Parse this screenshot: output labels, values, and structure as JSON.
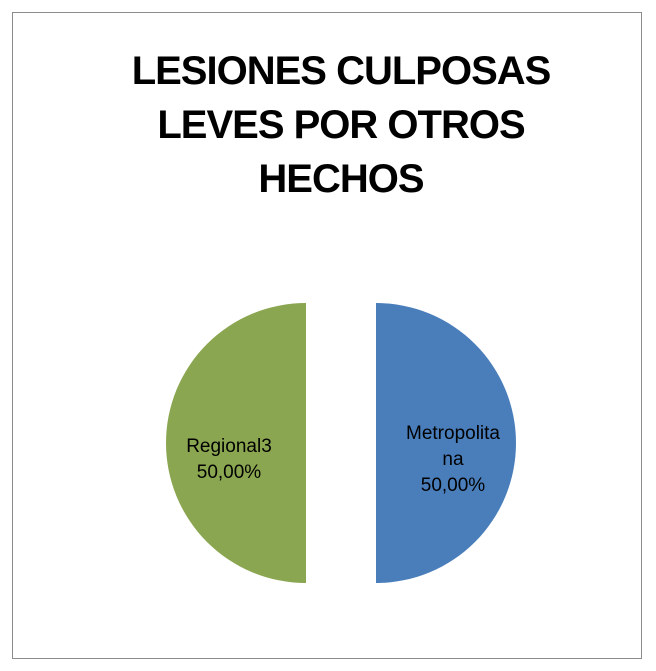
{
  "chart_data": {
    "type": "pie",
    "title": "LESIONES CULPOSAS LEVES POR OTROS HECHOS",
    "categories": [
      "Metropolitana",
      "Regional3"
    ],
    "values": [
      50,
      50
    ],
    "value_labels": [
      "50,00%",
      "50,00%"
    ],
    "colors": [
      "#4a7ebb",
      "#8ba650"
    ]
  }
}
